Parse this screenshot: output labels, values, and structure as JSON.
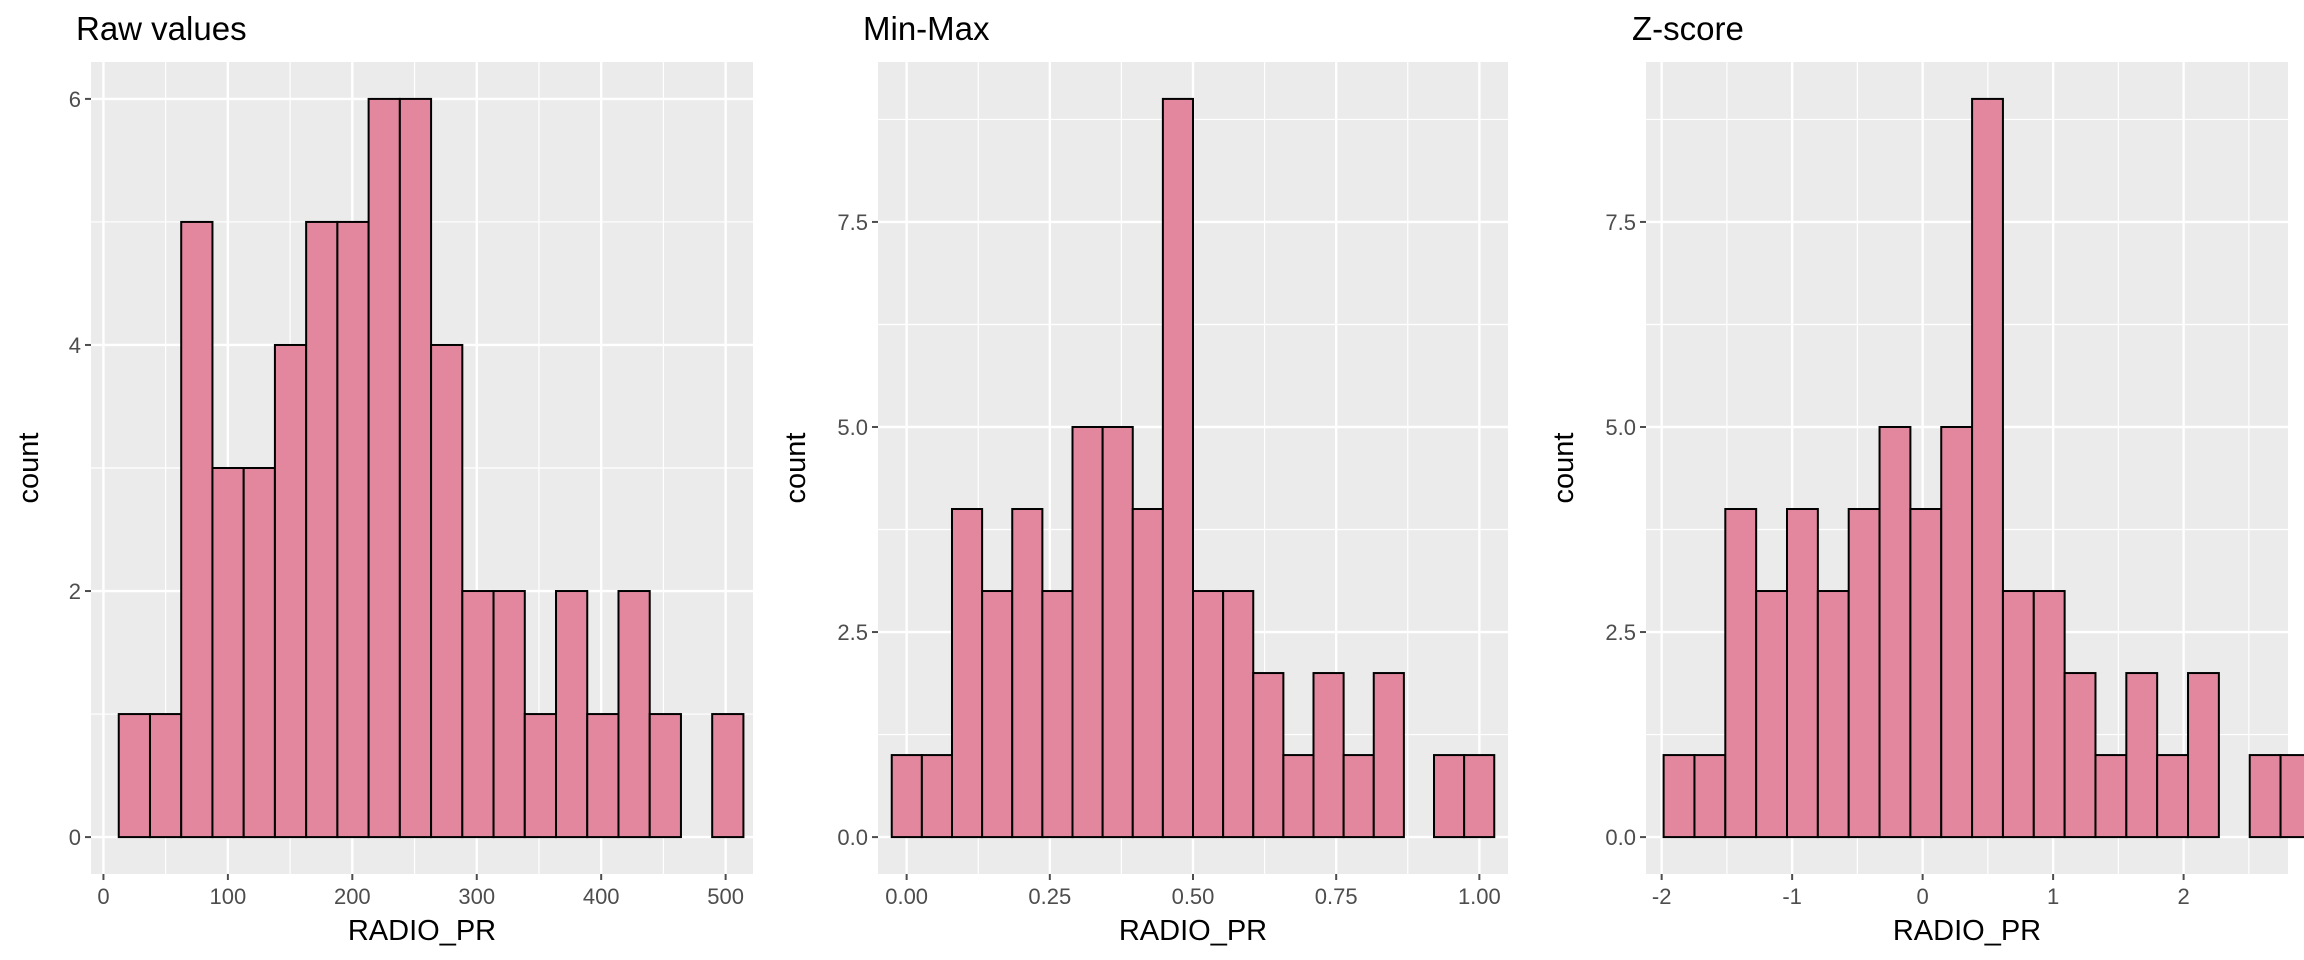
{
  "colors": {
    "panel_bg": "#ebebeb",
    "grid_major": "#ffffff",
    "bar_fill": "#e3879e",
    "bar_stroke": "#000000",
    "tick": "#4d4d4d",
    "text": "#000000"
  },
  "chart_data": [
    {
      "type": "bar",
      "title": "Raw values",
      "xlabel": "RADIO_PR",
      "ylabel": "count",
      "grid": true,
      "xlim": [
        -10,
        522
      ],
      "ylim": [
        -0.3,
        6.3
      ],
      "x_ticks": [
        0,
        100,
        200,
        300,
        400,
        500
      ],
      "x_tick_labels": [
        "0",
        "100",
        "200",
        "300",
        "400",
        "500"
      ],
      "y_ticks": [
        0,
        2,
        4,
        6
      ],
      "y_tick_labels": [
        "0",
        "2",
        "4",
        "6"
      ],
      "bin_start": 12.3,
      "bin_width": 25.1,
      "counts": [
        1,
        1,
        5,
        3,
        3,
        4,
        5,
        5,
        6,
        6,
        4,
        2,
        2,
        1,
        2,
        1,
        2,
        1,
        0,
        1
      ]
    },
    {
      "type": "bar",
      "title": "Min-Max",
      "xlabel": "RADIO_PR",
      "ylabel": "count",
      "grid": true,
      "xlim": [
        -0.05,
        1.05
      ],
      "ylim": [
        -0.45,
        9.45
      ],
      "x_ticks": [
        0,
        0.25,
        0.5,
        0.75,
        1
      ],
      "x_tick_labels": [
        "0.00",
        "0.25",
        "0.50",
        "0.75",
        "1.00"
      ],
      "y_ticks": [
        0,
        2.5,
        5,
        7.5
      ],
      "y_tick_labels": [
        "0.0",
        "2.5",
        "5.0",
        "7.5"
      ],
      "bin_start": -0.026,
      "bin_width": 0.0526,
      "counts": [
        1,
        1,
        4,
        3,
        4,
        3,
        5,
        5,
        4,
        9,
        3,
        3,
        2,
        1,
        2,
        1,
        2,
        0,
        1,
        1
      ]
    },
    {
      "type": "bar",
      "title": "Z-score",
      "xlabel": "RADIO_PR",
      "ylabel": "count",
      "grid": true,
      "xlim": [
        -2.12,
        2.8
      ],
      "ylim": [
        -0.45,
        9.45
      ],
      "x_ticks": [
        -2,
        -1,
        0,
        1,
        2
      ],
      "x_tick_labels": [
        "-2",
        "-1",
        "0",
        "1",
        "2"
      ],
      "y_ticks": [
        0,
        2.5,
        5,
        7.5
      ],
      "y_tick_labels": [
        "0.0",
        "2.5",
        "5.0",
        "7.5"
      ],
      "bin_start": -1.985,
      "bin_width": 0.2364,
      "counts": [
        1,
        1,
        4,
        3,
        4,
        3,
        4,
        5,
        4,
        5,
        9,
        3,
        3,
        2,
        1,
        2,
        1,
        2,
        0,
        1,
        1
      ]
    }
  ]
}
